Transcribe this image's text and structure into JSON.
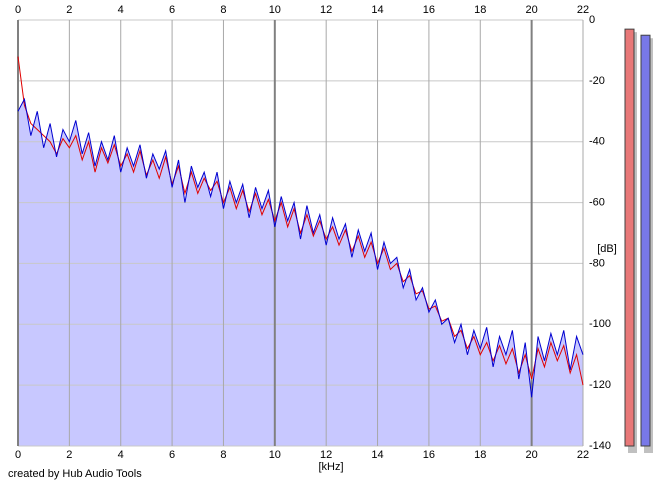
{
  "chart_data": {
    "type": "spectrum",
    "xlabel": "[kHz]",
    "ylabel": "[dB]",
    "credit": "created by Hub Audio Tools",
    "x": [
      0,
      0.25,
      0.5,
      0.75,
      1,
      1.25,
      1.5,
      1.75,
      2,
      2.25,
      2.5,
      2.75,
      3,
      3.25,
      3.5,
      3.75,
      4,
      4.25,
      4.5,
      4.75,
      5,
      5.25,
      5.5,
      5.75,
      6,
      6.25,
      6.5,
      6.75,
      7,
      7.25,
      7.5,
      7.75,
      8,
      8.25,
      8.5,
      8.75,
      9,
      9.25,
      9.5,
      9.75,
      10,
      10.25,
      10.5,
      10.75,
      11,
      11.25,
      11.5,
      11.75,
      12,
      12.25,
      12.5,
      12.75,
      13,
      13.25,
      13.5,
      13.75,
      14,
      14.25,
      14.5,
      14.75,
      15,
      15.25,
      15.5,
      15.75,
      16,
      16.25,
      16.5,
      16.75,
      17,
      17.25,
      17.5,
      17.75,
      18,
      18.25,
      18.5,
      18.75,
      19,
      19.25,
      19.5,
      19.75,
      20,
      20.25,
      20.5,
      20.75,
      21,
      21.25,
      21.5,
      21.75,
      22
    ],
    "series": [
      {
        "color": "#e00000",
        "values": [
          -12,
          -28,
          -34,
          -36,
          -38,
          -40,
          -44,
          -39,
          -42,
          -38,
          -46,
          -40,
          -50,
          -42,
          -47,
          -41,
          -48,
          -44,
          -50,
          -43,
          -51,
          -46,
          -52,
          -45,
          -54,
          -48,
          -57,
          -50,
          -57,
          -52,
          -56,
          -53,
          -60,
          -55,
          -62,
          -56,
          -63,
          -57,
          -64,
          -59,
          -66,
          -60,
          -68,
          -62,
          -70,
          -64,
          -71,
          -66,
          -72,
          -68,
          -74,
          -69,
          -76,
          -71,
          -78,
          -73,
          -80,
          -75,
          -82,
          -80,
          -86,
          -84,
          -90,
          -89,
          -95,
          -94,
          -99,
          -98,
          -104,
          -102,
          -108,
          -104,
          -110,
          -106,
          -112,
          -107,
          -113,
          -108,
          -116,
          -110,
          -118,
          -108,
          -114,
          -106,
          -112,
          -107,
          -116,
          -110,
          -120
        ]
      },
      {
        "color": "#0000d0",
        "values": [
          -30,
          -26,
          -38,
          -30,
          -42,
          -34,
          -45,
          -36,
          -40,
          -33,
          -44,
          -37,
          -48,
          -40,
          -46,
          -38,
          -50,
          -42,
          -48,
          -41,
          -52,
          -44,
          -49,
          -43,
          -55,
          -46,
          -60,
          -48,
          -55,
          -50,
          -58,
          -50,
          -62,
          -53,
          -60,
          -54,
          -65,
          -55,
          -62,
          -56,
          -68,
          -58,
          -66,
          -60,
          -72,
          -61,
          -70,
          -64,
          -74,
          -65,
          -72,
          -67,
          -78,
          -69,
          -76,
          -70,
          -82,
          -73,
          -80,
          -78,
          -88,
          -82,
          -92,
          -88,
          -96,
          -92,
          -100,
          -98,
          -106,
          -100,
          -110,
          -102,
          -108,
          -101,
          -114,
          -104,
          -110,
          -102,
          -118,
          -106,
          -124,
          -104,
          -112,
          -103,
          -110,
          -102,
          -115,
          -104,
          -110
        ]
      }
    ],
    "fill_color": "#c8c8ff",
    "meters": [
      {
        "color": "#e87878",
        "value": -3
      },
      {
        "color": "#7878e8",
        "value": -5
      }
    ],
    "xlim": [
      0,
      22
    ],
    "xticks": [
      0,
      2,
      4,
      6,
      8,
      10,
      12,
      14,
      16,
      18,
      20,
      22
    ],
    "ylim": [
      -140,
      0
    ],
    "yticks": [
      0,
      -20,
      -40,
      -60,
      -80,
      -100,
      -120,
      -140
    ],
    "grid": true
  }
}
